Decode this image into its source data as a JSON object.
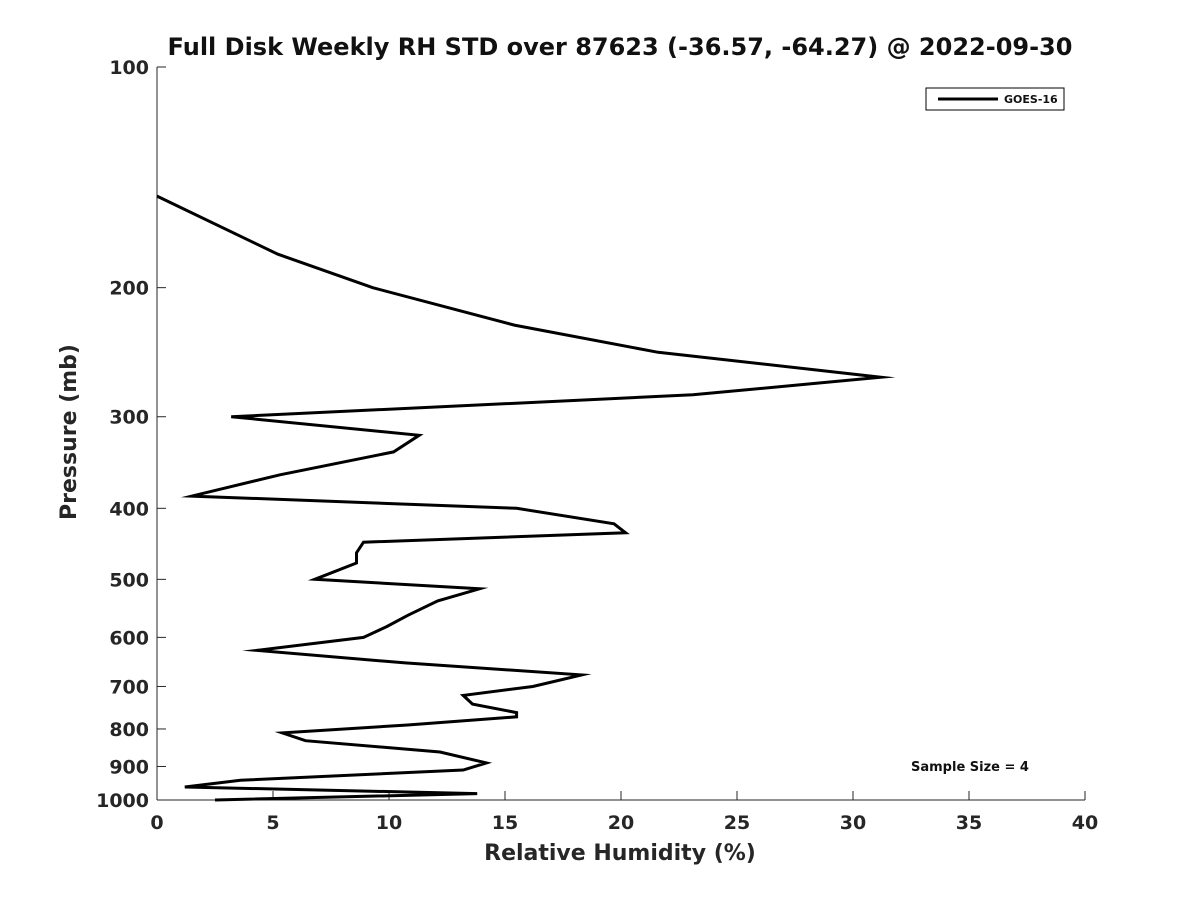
{
  "chart_data": {
    "type": "line",
    "title": "Full Disk Weekly RH STD over 87623 (-36.57, -64.27) @ 2022-09-30",
    "xlabel": "Relative Humidity (%)",
    "ylabel": "Pressure (mb)",
    "xlim": [
      0,
      40
    ],
    "ylim": [
      100,
      1000
    ],
    "y_scale": "log",
    "y_reversed": true,
    "x_ticks": [
      0,
      5,
      10,
      15,
      20,
      25,
      30,
      35,
      40
    ],
    "y_ticks": [
      100,
      200,
      300,
      400,
      500,
      600,
      700,
      800,
      900,
      1000
    ],
    "grid": false,
    "legend_position": "top-right",
    "series": [
      {
        "name": "GOES-16",
        "color": "#000000",
        "x": [
          0.0,
          5.2,
          9.3,
          15.4,
          21.6,
          31.2,
          23.1,
          3.2,
          11.3,
          10.2,
          5.3,
          1.5,
          15.5,
          19.7,
          20.2,
          8.9,
          8.6,
          8.6,
          6.8,
          13.9,
          12.1,
          10.8,
          9.9,
          8.9,
          4.3,
          10.7,
          18.3,
          16.2,
          13.2,
          13.6,
          15.5,
          15.5,
          10.8,
          5.4,
          6.4,
          12.2,
          14.2,
          13.2,
          3.6,
          1.2,
          13.8,
          2.5
        ],
        "y": [
          150,
          180,
          200,
          225,
          245,
          265,
          280,
          300,
          318,
          335,
          360,
          385,
          400,
          420,
          432,
          445,
          460,
          475,
          500,
          515,
          535,
          560,
          580,
          600,
          625,
          650,
          675,
          700,
          720,
          740,
          760,
          770,
          790,
          810,
          830,
          860,
          890,
          910,
          940,
          960,
          980,
          1000
        ]
      }
    ],
    "annotations": [
      "Sample Size = 4"
    ]
  }
}
